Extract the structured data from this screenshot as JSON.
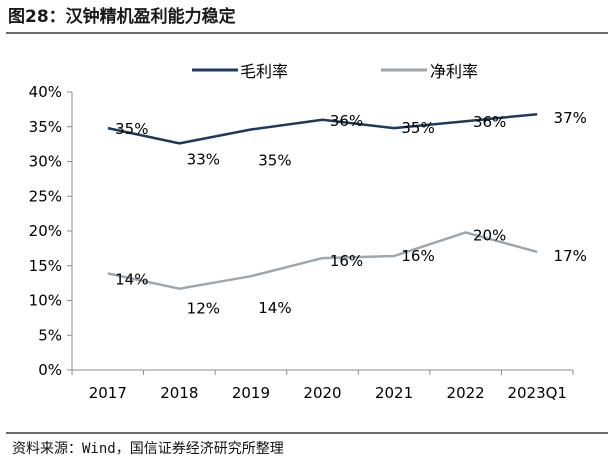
{
  "title": "图28：汉钟精机盈利能力稳定",
  "source": "资料来源：Wind，国信证券经济研究所整理",
  "colors": {
    "gross": "#1b3a5e",
    "net": "#9aa8b3",
    "axis": "#8c8c8c"
  },
  "chart_data": {
    "type": "line",
    "categories": [
      "2017",
      "2018",
      "2019",
      "2020",
      "2021",
      "2022",
      "2023Q1"
    ],
    "ylim": [
      0,
      40
    ],
    "yticks": [
      "0%",
      "5%",
      "10%",
      "15%",
      "20%",
      "25%",
      "30%",
      "35%",
      "40%"
    ],
    "grid": false,
    "legend_position": "top",
    "series": [
      {
        "name": "毛利率",
        "values": [
          34.8,
          32.6,
          34.6,
          36.0,
          34.8,
          35.8,
          36.8
        ],
        "labels": [
          "35%",
          "33%",
          "35%",
          "36%",
          "35%",
          "36%",
          "37%"
        ]
      },
      {
        "name": "净利率",
        "values": [
          13.9,
          11.7,
          13.5,
          16.1,
          16.4,
          19.8,
          17.0
        ],
        "labels": [
          "14%",
          "12%",
          "14%",
          "16%",
          "16%",
          "20%",
          "17%"
        ]
      }
    ]
  }
}
